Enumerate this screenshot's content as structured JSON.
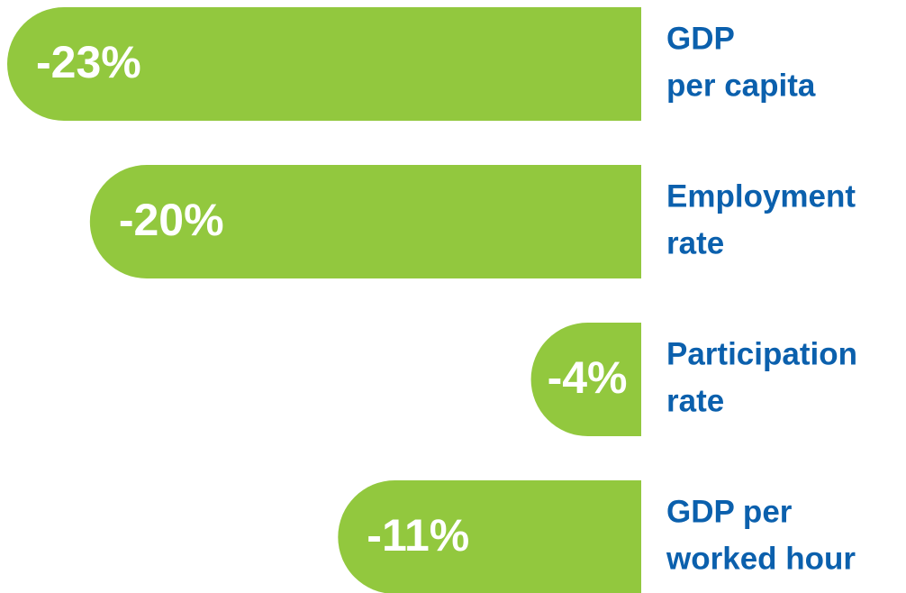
{
  "chart_data": {
    "type": "bar",
    "orientation": "horizontal",
    "categories": [
      [
        "GDP",
        "per capita"
      ],
      [
        "Employment",
        "rate"
      ],
      [
        "Participation",
        "rate"
      ],
      [
        "GDP per",
        "worked hour"
      ]
    ],
    "values": [
      -23,
      -20,
      -4,
      -11
    ],
    "value_labels": [
      "-23%",
      "-20%",
      "-4%",
      "-11%"
    ],
    "color": "#92c83e",
    "label_color": "#0b60ad"
  }
}
